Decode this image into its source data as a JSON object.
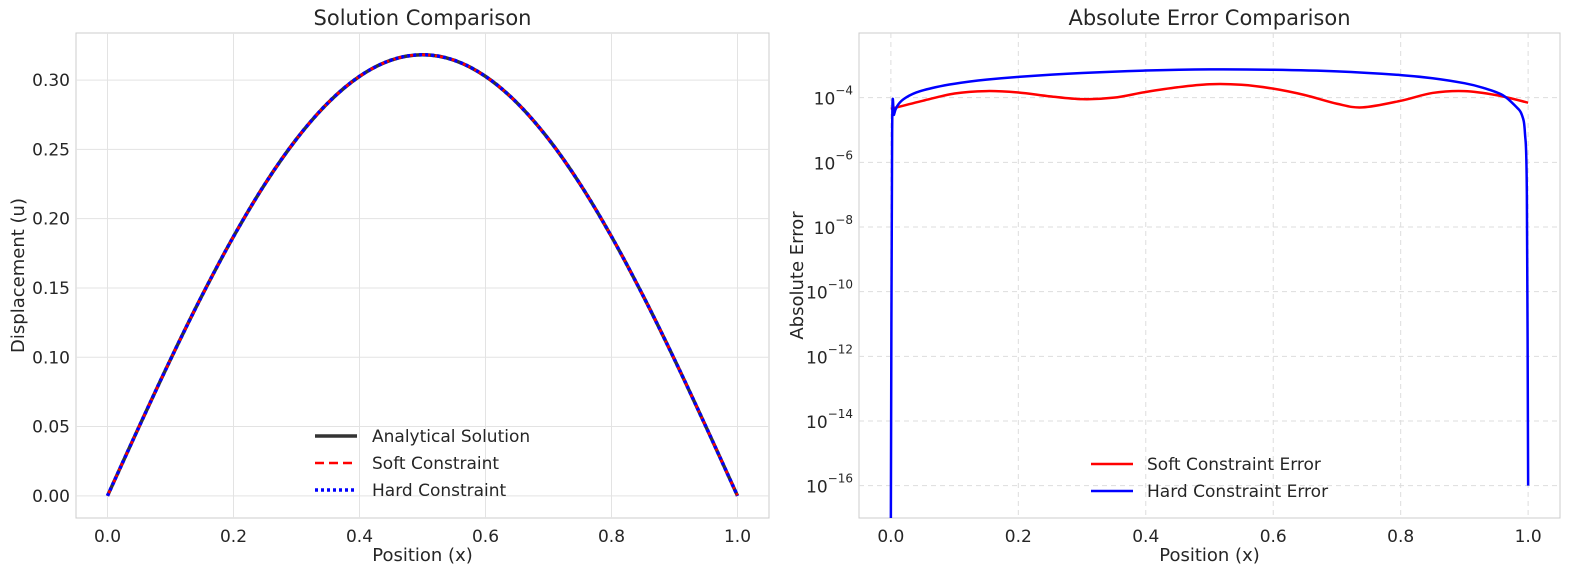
{
  "chart_data": [
    {
      "type": "line",
      "title": "Solution Comparison",
      "xlabel": "Position (x)",
      "ylabel": "Displacement (u)",
      "xlim": [
        -0.05,
        1.05
      ],
      "ylim": [
        -0.016,
        0.334
      ],
      "xticks": [
        0.0,
        0.2,
        0.4,
        0.6,
        0.8,
        1.0
      ],
      "xtick_labels": [
        "0.0",
        "0.2",
        "0.4",
        "0.6",
        "0.8",
        "1.0"
      ],
      "yticks": [
        0.0,
        0.05,
        0.1,
        0.15,
        0.2,
        0.25,
        0.3
      ],
      "ytick_labels": [
        "0.00",
        "0.05",
        "0.10",
        "0.15",
        "0.20",
        "0.25",
        "0.30"
      ],
      "grid": true,
      "legend_position": "lower-center",
      "x": [
        0.0,
        0.05,
        0.1,
        0.15,
        0.2,
        0.25,
        0.3,
        0.35,
        0.4,
        0.45,
        0.5,
        0.55,
        0.6,
        0.65,
        0.7,
        0.75,
        0.8,
        0.85,
        0.9,
        0.95,
        1.0
      ],
      "series": [
        {
          "name": "Analytical Solution",
          "color": "#333333",
          "style": "solid",
          "values": [
            0.0,
            0.0498,
            0.0984,
            0.1445,
            0.1871,
            0.2251,
            0.2575,
            0.2836,
            0.3027,
            0.3144,
            0.3183,
            0.3144,
            0.3027,
            0.2836,
            0.2575,
            0.2251,
            0.1871,
            0.1445,
            0.0984,
            0.0498,
            0.0
          ]
        },
        {
          "name": "Soft Constraint",
          "color": "#ff0000",
          "style": "dashed",
          "values": [
            0.0,
            0.0498,
            0.0984,
            0.1445,
            0.1871,
            0.2251,
            0.2575,
            0.2836,
            0.3027,
            0.3144,
            0.3183,
            0.3144,
            0.3027,
            0.2836,
            0.2575,
            0.2251,
            0.1871,
            0.1445,
            0.0984,
            0.0498,
            0.0
          ]
        },
        {
          "name": "Hard Constraint",
          "color": "#0000ff",
          "style": "dotted",
          "values": [
            0.0,
            0.0498,
            0.0984,
            0.1445,
            0.1871,
            0.2251,
            0.2575,
            0.2836,
            0.3027,
            0.3144,
            0.3183,
            0.3144,
            0.3027,
            0.2836,
            0.2575,
            0.2251,
            0.1871,
            0.1445,
            0.0984,
            0.0498,
            0.0
          ]
        }
      ]
    },
    {
      "type": "line",
      "title": "Absolute Error Comparison",
      "xlabel": "Position (x)",
      "ylabel": "Absolute Error",
      "yscale": "log",
      "xlim": [
        -0.05,
        1.05
      ],
      "ylim": [
        1e-17,
        0.01
      ],
      "xticks": [
        0.0,
        0.2,
        0.4,
        0.6,
        0.8,
        1.0
      ],
      "xtick_labels": [
        "0.0",
        "0.2",
        "0.4",
        "0.6",
        "0.8",
        "1.0"
      ],
      "ytick_exponents": [
        -4,
        -6,
        -8,
        -10,
        -12,
        -14,
        -16
      ],
      "ytick_base": "10",
      "grid": true,
      "grid_style": "dashed",
      "legend_position": "lower-center",
      "series": [
        {
          "name": "Soft Constraint Error",
          "color": "#ff0000",
          "x": [
            0.0,
            0.05,
            0.1,
            0.15,
            0.2,
            0.25,
            0.3,
            0.35,
            0.4,
            0.45,
            0.5,
            0.55,
            0.6,
            0.65,
            0.7,
            0.74,
            0.8,
            0.85,
            0.9,
            0.95,
            1.0
          ],
          "y": [
            4.5e-05,
            8e-05,
            0.000135,
            0.00016,
            0.000145,
            0.00011,
            9e-05,
            0.0001,
            0.00015,
            0.00021,
            0.00026,
            0.00025,
            0.00019,
            0.00012,
            6.5e-05,
            5e-05,
            8e-05,
            0.00014,
            0.00016,
            0.00012,
            7e-05
          ]
        },
        {
          "name": "Hard Constraint Error",
          "color": "#0000ff",
          "x": [
            0.0,
            0.002,
            0.005,
            0.01,
            0.02,
            0.04,
            0.07,
            0.1,
            0.15,
            0.2,
            0.3,
            0.4,
            0.5,
            0.6,
            0.7,
            0.8,
            0.85,
            0.9,
            0.93,
            0.96,
            0.98,
            0.99,
            0.995,
            0.998,
            1.0
          ],
          "y": [
            1e-17,
            8e-06,
            3e-05,
            5.5e-05,
            9e-05,
            0.000145,
            0.00021,
            0.00027,
            0.00036,
            0.00044,
            0.00058,
            0.00069,
            0.00075,
            0.00073,
            0.00065,
            0.0005,
            0.0004,
            0.00028,
            0.0002,
            0.00012,
            5.5e-05,
            3e-05,
            8e-06,
            1e-07,
            1e-16
          ]
        }
      ]
    }
  ]
}
